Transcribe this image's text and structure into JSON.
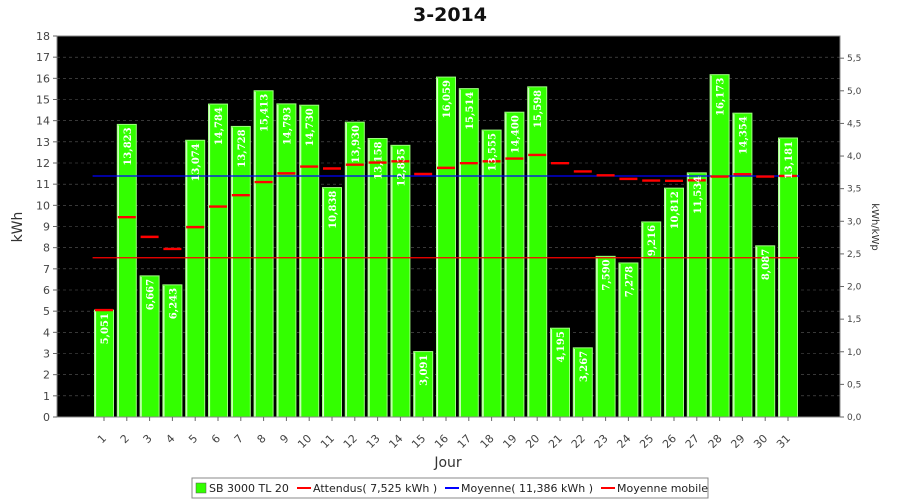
{
  "chart_data": {
    "type": "bar",
    "title": "3-2014",
    "xlabel": "Jour",
    "ylabel": "kWh",
    "ylabel_right": "kWh/kWp",
    "ylim": [
      0,
      18
    ],
    "yticks": [
      "0",
      "1",
      "2",
      "3",
      "4",
      "5",
      "6",
      "7",
      "8",
      "9",
      "10",
      "11",
      "12",
      "13",
      "14",
      "15",
      "16",
      "17",
      "18"
    ],
    "y2lim": [
      0,
      5.84
    ],
    "y2ticks": [
      "0,0",
      "0,5",
      "1,0",
      "1,5",
      "2,0",
      "2,5",
      "3,0",
      "3,5",
      "4,0",
      "4,5",
      "5,0",
      "5,5"
    ],
    "grid": true,
    "legend_position": "bottom-center",
    "categories": [
      "1",
      "2",
      "3",
      "4",
      "5",
      "6",
      "7",
      "8",
      "9",
      "10",
      "11",
      "12",
      "13",
      "14",
      "15",
      "16",
      "17",
      "18",
      "19",
      "20",
      "21",
      "22",
      "23",
      "24",
      "25",
      "26",
      "27",
      "28",
      "29",
      "30",
      "31"
    ],
    "series": [
      {
        "name": "SB 3000 TL 20",
        "kind": "bar",
        "color": "#33ff00",
        "values": [
          5.051,
          13.823,
          6.667,
          6.243,
          13.074,
          14.784,
          13.728,
          15.413,
          14.793,
          14.73,
          10.838,
          13.93,
          13.158,
          12.835,
          3.091,
          16.059,
          15.514,
          13.555,
          14.4,
          15.598,
          4.195,
          3.267,
          7.59,
          7.278,
          9.216,
          10.812,
          11.534,
          16.173,
          14.354,
          8.087,
          13.181
        ],
        "labels": [
          "5,051",
          "13,823",
          "6,667",
          "6,243",
          "13,074",
          "14,784",
          "13,728",
          "15,413",
          "14,793",
          "14,730",
          "10,838",
          "13,930",
          "13,158",
          "12,835",
          "3,091",
          "16,059",
          "15,514",
          "13,555",
          "14,400",
          "15,598",
          "4,195",
          "3,267",
          "7,590",
          "7,278",
          "9,216",
          "10,812",
          "11,534",
          "16,173",
          "14,354",
          "8,087",
          "13,181"
        ]
      },
      {
        "name": "Attendus( 7,525 kWh )",
        "kind": "hline",
        "color": "#ff0000",
        "value": 7.525
      },
      {
        "name": "Moyenne( 11,386 kWh )",
        "kind": "hline",
        "color": "#0000ff",
        "value": 11.386
      },
      {
        "name": "Moyenne mobile",
        "kind": "step",
        "color": "#ff0000",
        "values": [
          5.05,
          9.44,
          8.51,
          7.94,
          8.97,
          9.94,
          10.48,
          11.1,
          11.51,
          11.83,
          11.74,
          11.92,
          12.02,
          12.08,
          11.48,
          11.77,
          11.99,
          12.08,
          12.21,
          12.38,
          11.99,
          11.6,
          11.42,
          11.25,
          11.17,
          11.16,
          11.18,
          11.36,
          11.47,
          11.36,
          11.39
        ]
      }
    ]
  }
}
